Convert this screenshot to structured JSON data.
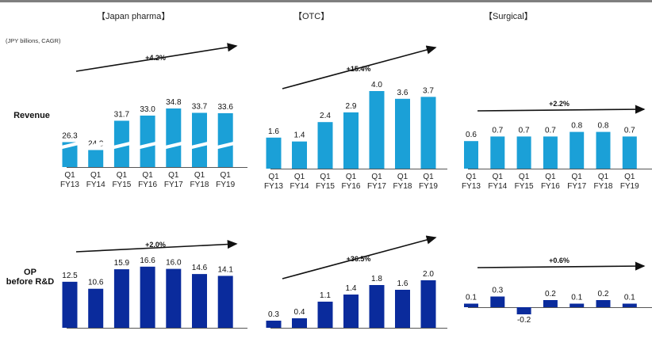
{
  "units": "(JPY billions, CAGR)",
  "row_labels": {
    "revenue": "Revenue",
    "op": "OP\nbefore R&D"
  },
  "colors": {
    "revenue_bar": "#1ba0d7",
    "op_bar": "#0a2b9c",
    "arrow": "#111111",
    "axis": "#555555",
    "top_rule": "#7f7f7f"
  },
  "chart_data": [
    {
      "type": "bar",
      "panel": "Japan pharma",
      "title": "【Japan pharma】",
      "row": "Revenue",
      "categories": [
        "Q1\nFY13",
        "Q1\nFY14",
        "Q1\nFY15",
        "Q1\nFY16",
        "Q1\nFY17",
        "Q1\nFY18",
        "Q1\nFY19"
      ],
      "values": [
        26.3,
        24.3,
        31.7,
        33.0,
        34.8,
        33.7,
        33.6
      ],
      "value_labels": [
        "26.3",
        "24.3",
        "31.7",
        "33.0",
        "34.8",
        "33.7",
        "33.6"
      ],
      "cagr": "+4.2%",
      "axis_break": true
    },
    {
      "type": "bar",
      "panel": "OTC",
      "title": "【OTC】",
      "row": "Revenue",
      "categories": [
        "Q1\nFY13",
        "Q1\nFY14",
        "Q1\nFY15",
        "Q1\nFY16",
        "Q1\nFY17",
        "Q1\nFY18",
        "Q1\nFY19"
      ],
      "values": [
        1.6,
        1.4,
        2.4,
        2.9,
        4.0,
        3.6,
        3.7
      ],
      "value_labels": [
        "1.6",
        "1.4",
        "2.4",
        "2.9",
        "4.0",
        "3.6",
        "3.7"
      ],
      "cagr": "+15.4%",
      "axis_break": false
    },
    {
      "type": "bar",
      "panel": "Surgical",
      "title": "【Surgical】",
      "row": "Revenue",
      "categories": [
        "Q1\nFY13",
        "Q1\nFY14",
        "Q1\nFY15",
        "Q1\nFY16",
        "Q1\nFY17",
        "Q1\nFY18",
        "Q1\nFY19"
      ],
      "values": [
        0.6,
        0.7,
        0.7,
        0.7,
        0.8,
        0.8,
        0.7
      ],
      "value_labels": [
        "0.6",
        "0.7",
        "0.7",
        "0.7",
        "0.8",
        "0.8",
        "0.7"
      ],
      "cagr": "+2.2%",
      "axis_break": false
    },
    {
      "type": "bar",
      "panel": "Japan pharma",
      "row": "OP before R&D",
      "values": [
        12.5,
        10.6,
        15.9,
        16.6,
        16.0,
        14.6,
        14.1
      ],
      "value_labels": [
        "12.5",
        "10.6",
        "15.9",
        "16.6",
        "16.0",
        "14.6",
        "14.1"
      ],
      "cagr": "+2.0%"
    },
    {
      "type": "bar",
      "panel": "OTC",
      "row": "OP before R&D",
      "values": [
        0.3,
        0.4,
        1.1,
        1.4,
        1.8,
        1.6,
        2.0
      ],
      "value_labels": [
        "0.3",
        "0.4",
        "1.1",
        "1.4",
        "1.8",
        "1.6",
        "2.0"
      ],
      "cagr": "+36.5%"
    },
    {
      "type": "bar",
      "panel": "Surgical",
      "row": "OP before R&D",
      "values": [
        0.1,
        0.3,
        -0.2,
        0.2,
        0.1,
        0.2,
        0.1
      ],
      "value_labels": [
        "0.1",
        "0.3",
        "-0.2",
        "0.2",
        "0.1",
        "0.2",
        "0.1"
      ],
      "cagr": "+0.6%"
    }
  ]
}
